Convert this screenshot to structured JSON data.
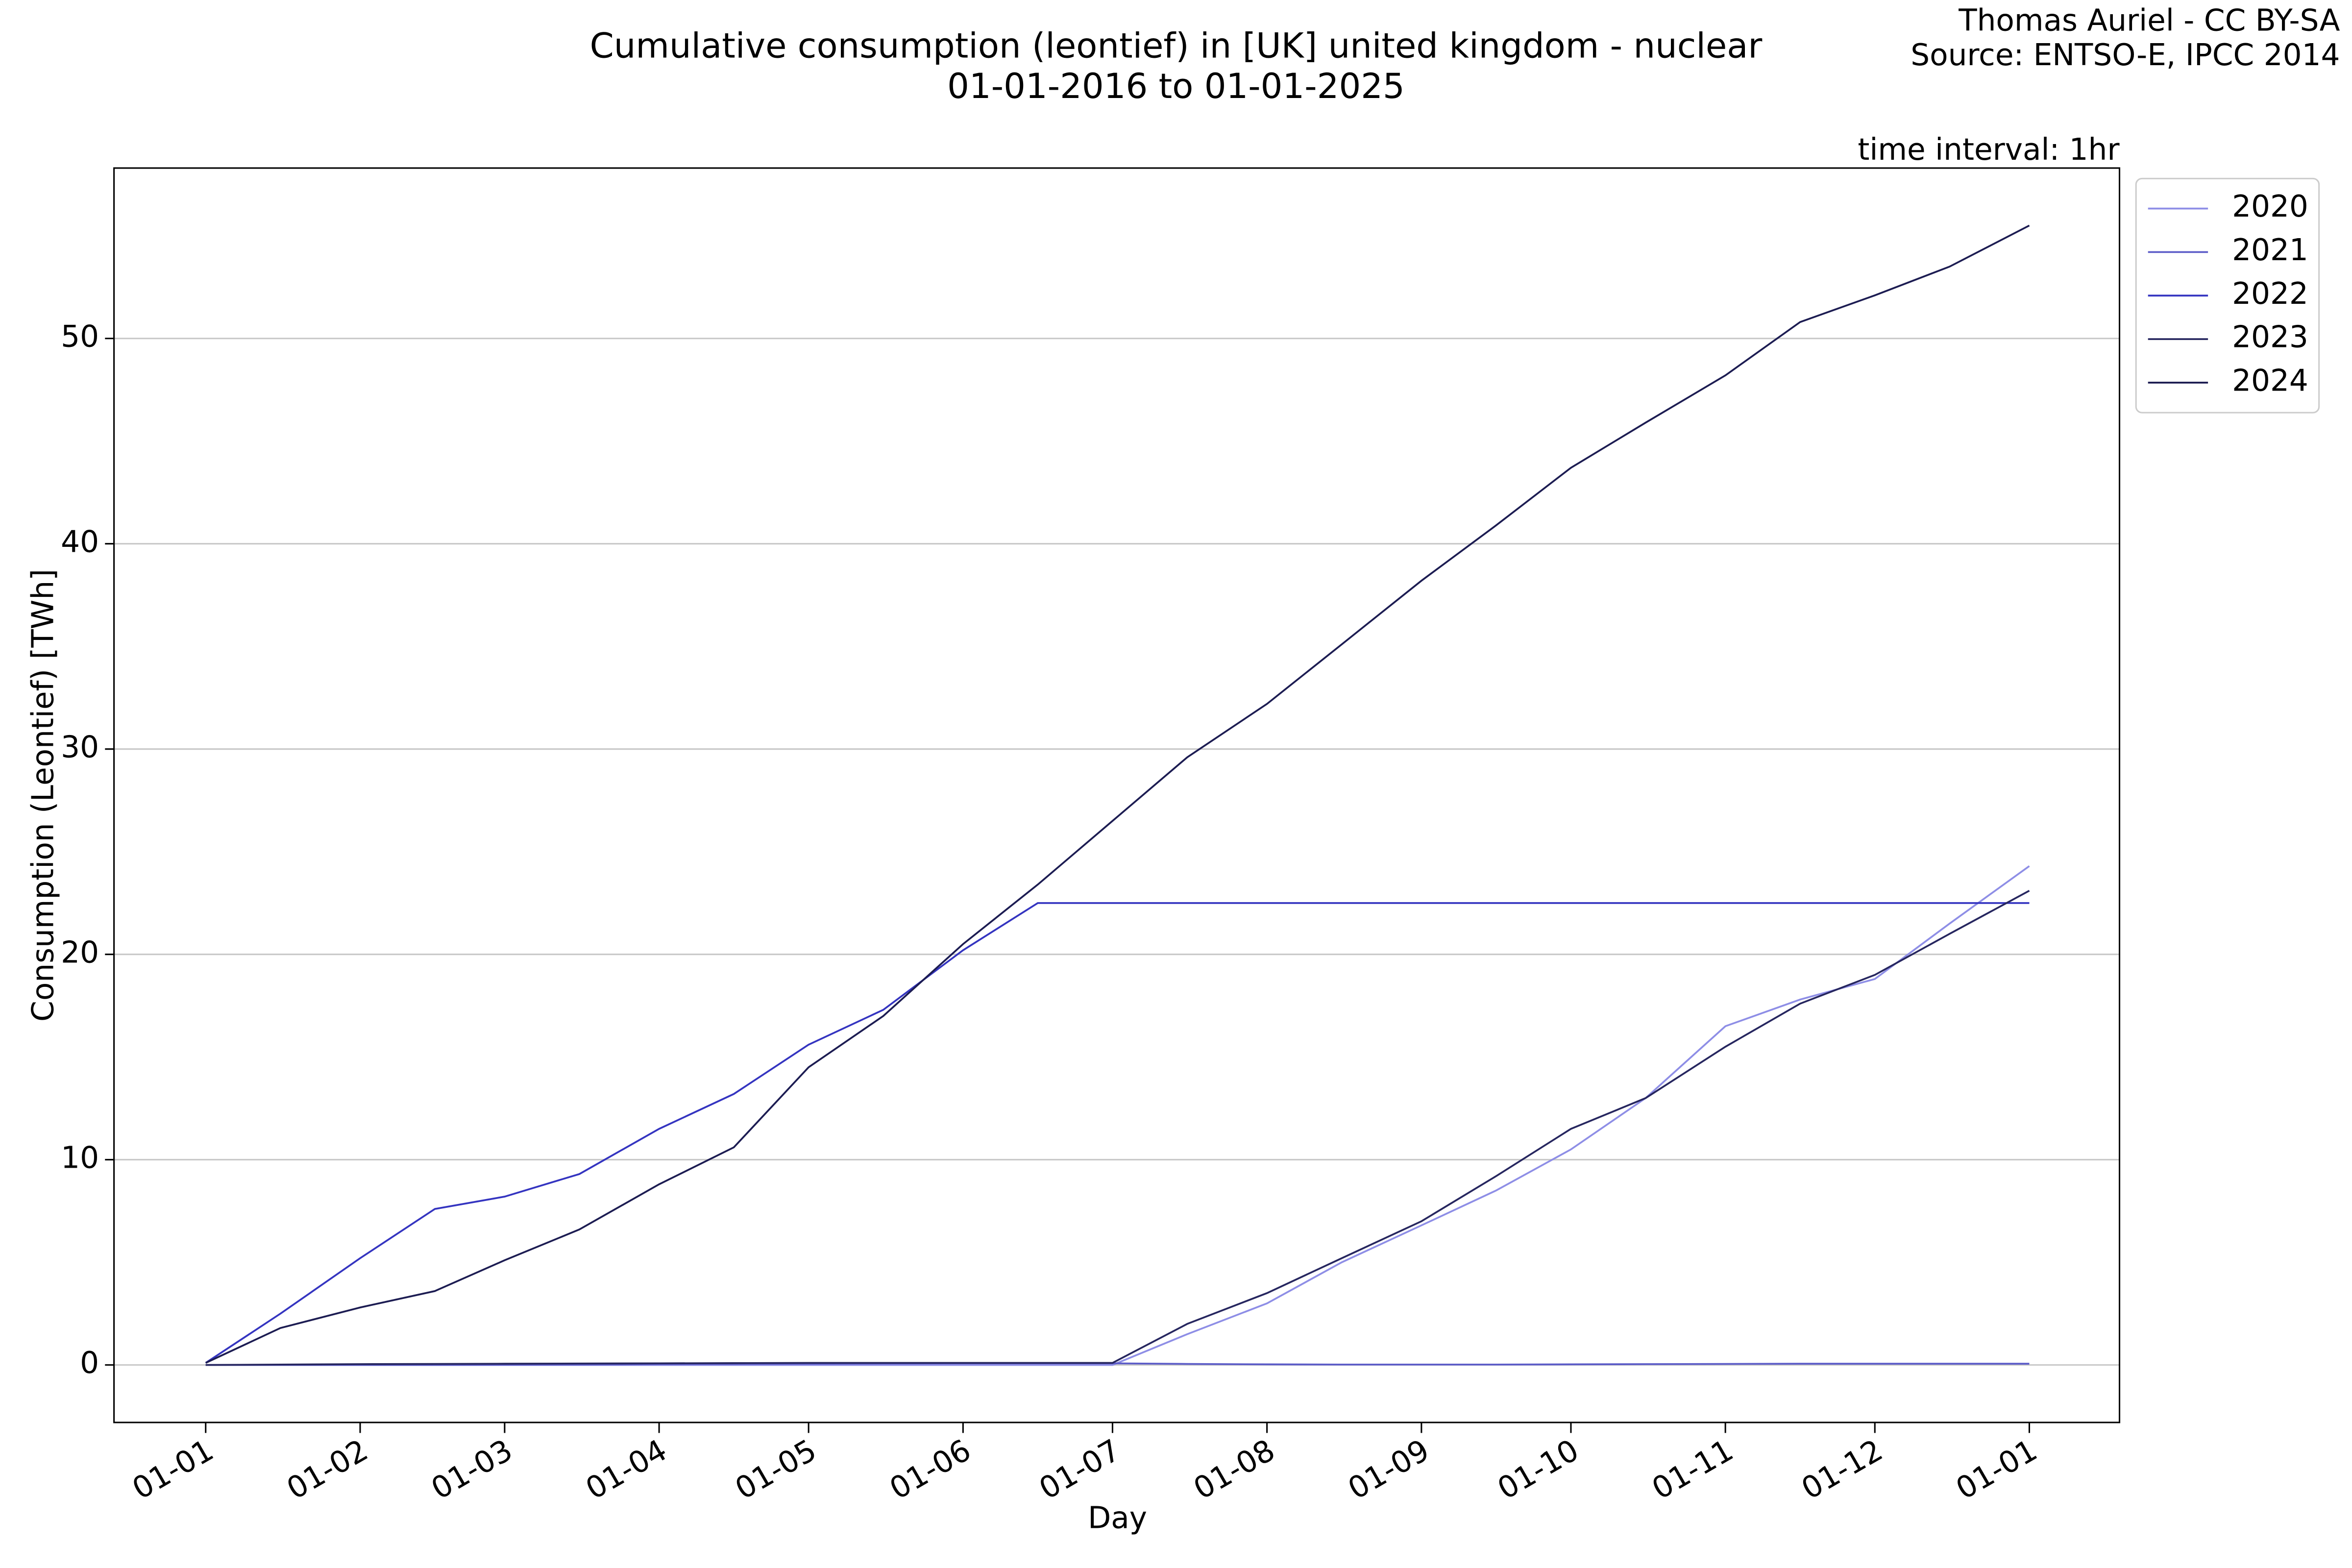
{
  "chart_data": {
    "type": "line",
    "title": "Cumulative consumption (leontief) in [UK] united kingdom - nuclear",
    "subtitle": "01-01-2016 to 01-01-2025",
    "credits": [
      "Thomas Auriel - CC BY-SA",
      "Source: ENTSO-E, IPCC 2014"
    ],
    "annotation": "time interval: 1hr",
    "x_label": "Day",
    "y_label": "Consumption (Leontief) [TWh]",
    "x": [
      0,
      15,
      31,
      46,
      60,
      75,
      91,
      106,
      121,
      136,
      152,
      167,
      182,
      197,
      213,
      228,
      244,
      259,
      274,
      289,
      305,
      320,
      335,
      350,
      366
    ],
    "xlim": [
      -18.4,
      384.1
    ],
    "xticks": [
      {
        "value": 0,
        "label": "01-01"
      },
      {
        "value": 31,
        "label": "01-02"
      },
      {
        "value": 60,
        "label": "01-03"
      },
      {
        "value": 91,
        "label": "01-04"
      },
      {
        "value": 121,
        "label": "01-05"
      },
      {
        "value": 152,
        "label": "01-06"
      },
      {
        "value": 182,
        "label": "01-07"
      },
      {
        "value": 213,
        "label": "01-08"
      },
      {
        "value": 244,
        "label": "01-09"
      },
      {
        "value": 274,
        "label": "01-10"
      },
      {
        "value": 305,
        "label": "01-11"
      },
      {
        "value": 335,
        "label": "01-12"
      },
      {
        "value": 366,
        "label": "01-01"
      }
    ],
    "ylim": [
      -2.8,
      58.3
    ],
    "yticks": [
      0,
      10,
      20,
      30,
      40,
      50
    ],
    "grid": true,
    "legend": "upper right outside",
    "series": [
      {
        "name": "2020",
        "color": "#8e8ee6",
        "values": [
          0,
          0,
          0,
          0,
          0,
          0,
          0,
          0,
          0,
          0,
          0,
          0,
          0,
          1.5,
          3.0,
          5.0,
          6.8,
          8.5,
          10.5,
          13.0,
          16.5,
          17.8,
          18.8,
          21.5,
          24.3
        ]
      },
      {
        "name": "2021",
        "color": "#5c5cc8",
        "values": [
          0,
          0,
          0,
          0,
          0.01,
          0.02,
          0.04,
          0.05,
          0.06,
          0.07,
          0.08,
          0.08,
          0.08,
          0.05,
          0.03,
          0.02,
          0.02,
          0.02,
          0.03,
          0.04,
          0.05,
          0.06,
          0.06,
          0.06,
          0.06
        ]
      },
      {
        "name": "2022",
        "color": "#3434c0",
        "values": [
          0.1,
          2.5,
          5.2,
          7.6,
          8.2,
          9.3,
          11.5,
          13.2,
          15.6,
          17.3,
          20.2,
          22.5,
          22.5,
          22.5,
          22.5,
          22.5,
          22.5,
          22.5,
          22.5,
          22.5,
          22.5,
          22.5,
          22.5,
          22.5,
          22.5
        ]
      },
      {
        "name": "2023",
        "color": "#26265f",
        "values": [
          0,
          0.02,
          0.04,
          0.05,
          0.06,
          0.07,
          0.08,
          0.09,
          0.1,
          0.1,
          0.1,
          0.1,
          0.1,
          2.0,
          3.5,
          5.2,
          7.0,
          9.2,
          11.5,
          13.0,
          15.5,
          17.6,
          19.0,
          21.0,
          23.1
        ]
      },
      {
        "name": "2024",
        "color": "#1c1c52",
        "values": [
          0.1,
          1.8,
          2.8,
          3.6,
          5.1,
          6.6,
          8.8,
          10.6,
          14.5,
          17.0,
          20.5,
          23.4,
          26.5,
          29.6,
          32.2,
          35.1,
          38.2,
          40.9,
          43.7,
          45.9,
          48.2,
          50.8,
          52.1,
          53.5,
          55.5
        ]
      }
    ]
  }
}
